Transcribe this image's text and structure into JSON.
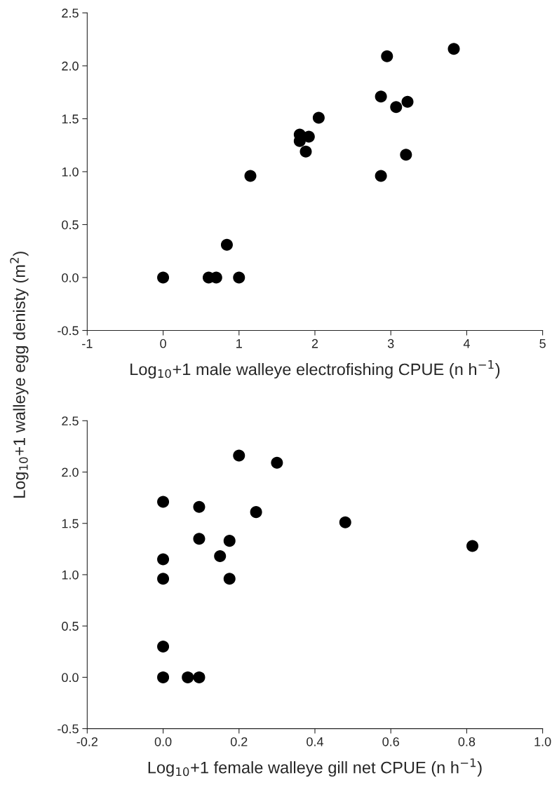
{
  "chart_data": [
    {
      "type": "scatter",
      "xlabel": "Log$_{10}$+1 male walleye electrofishing CPUE (n h$^{−1}$)",
      "ylabel": "Log$_{10}$+1 walleye egg denisty (m$^{2}$)",
      "color": "#000000",
      "marker": "circle",
      "grid": false,
      "x": [
        0,
        0.6,
        0.7,
        1.0,
        0.84,
        1.15,
        1.8,
        1.8,
        1.92,
        1.88,
        2.05,
        2.87,
        2.95,
        3.07,
        3.22,
        3.2,
        2.87,
        3.83
      ],
      "values": [
        0,
        0,
        0,
        0,
        0.31,
        0.96,
        1.35,
        1.29,
        1.33,
        1.19,
        1.51,
        1.71,
        2.09,
        1.61,
        1.66,
        1.16,
        0.96,
        2.16
      ],
      "xlim": [
        -1,
        5
      ],
      "xticks": [
        -1,
        0,
        1,
        2,
        3,
        4,
        5
      ],
      "ylim": [
        -0.5,
        2.5
      ],
      "yticks": [
        {
          "value": -0.5,
          "label": "-0.5"
        },
        {
          "value": 0,
          "label": "0.0"
        },
        {
          "value": 0.5,
          "label": "0.5"
        },
        {
          "value": 1.0,
          "label": "1.0"
        },
        {
          "value": 1.5,
          "label": "1.5"
        },
        {
          "value": 2.0,
          "label": "2.0"
        },
        {
          "value": 2.5,
          "label": "2.5"
        }
      ]
    },
    {
      "type": "scatter",
      "xlabel": "Log$_{10}$+1 female walleye gill net CPUE (n h$^{−1}$)",
      "color": "#000000",
      "marker": "circle",
      "grid": false,
      "x": [
        0,
        0,
        0,
        0,
        0,
        0.065,
        0.095,
        0.095,
        0.095,
        0.15,
        0.175,
        0.175,
        0.2,
        0.245,
        0.3,
        0.48,
        0.815
      ],
      "values": [
        0,
        0.3,
        0.96,
        1.15,
        1.71,
        0,
        0,
        1.35,
        1.66,
        1.18,
        1.33,
        0.96,
        2.16,
        1.61,
        2.09,
        1.51,
        1.28
      ],
      "xlim": [
        -0.2,
        1.0
      ],
      "xticks": [
        {
          "value": -0.2,
          "label": "-0.2"
        },
        {
          "value": 0,
          "label": "0.0"
        },
        {
          "value": 0.2,
          "label": "0.2"
        },
        {
          "value": 0.4,
          "label": "0.4"
        },
        {
          "value": 0.6,
          "label": "0.6"
        },
        {
          "value": 0.8,
          "label": "0.8"
        },
        {
          "value": 1.0,
          "label": "1.0"
        }
      ],
      "ylim": [
        -0.5,
        2.5
      ],
      "yticks": [
        {
          "value": -0.5,
          "label": "-0.5"
        },
        {
          "value": 0,
          "label": "0.0"
        },
        {
          "value": 0.5,
          "label": "0.5"
        },
        {
          "value": 1.0,
          "label": "1.0"
        },
        {
          "value": 1.5,
          "label": "1.5"
        },
        {
          "value": 2.0,
          "label": "2.0"
        },
        {
          "value": 2.5,
          "label": "2.5"
        }
      ]
    }
  ]
}
